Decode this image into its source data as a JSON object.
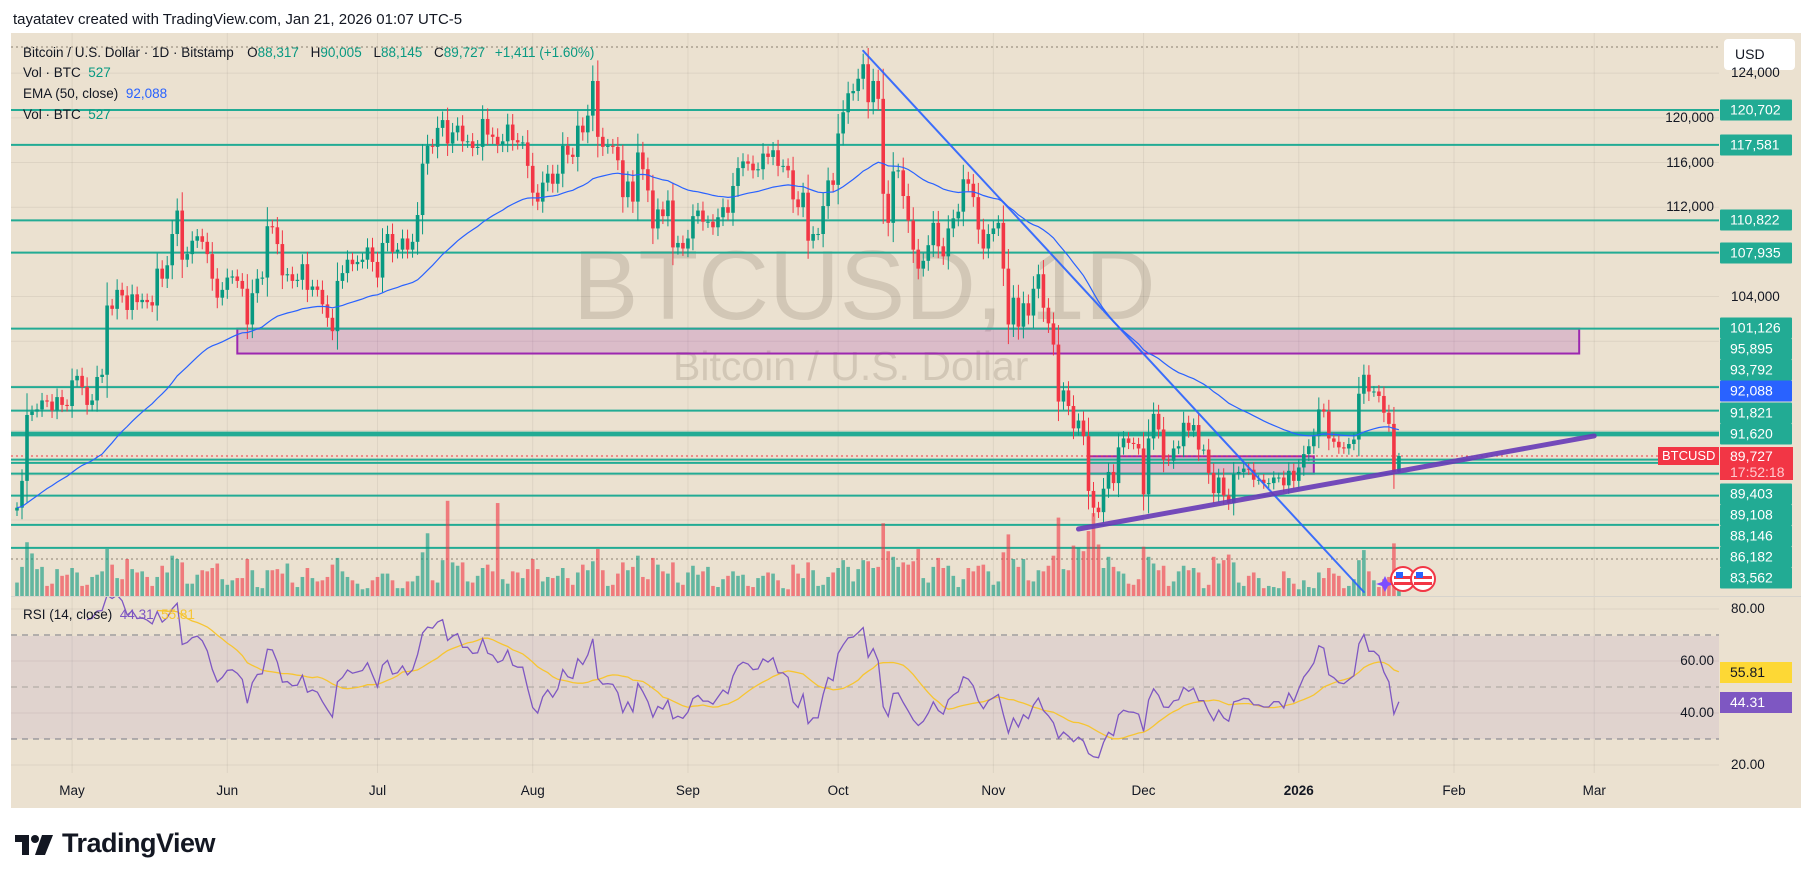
{
  "header": {
    "attribution": "tayatatev created with TradingView.com, Jan 21, 2026 01:07 UTC-5"
  },
  "legend": {
    "symbol": "Bitcoin / U.S. Dollar · 1D · Bitstamp",
    "o_label": "O",
    "open": "88,317",
    "h_label": "H",
    "high": "90,005",
    "l_label": "L",
    "low": "88,145",
    "c_label": "C",
    "close": "89,727",
    "change": "+1,411 (+1.60%)",
    "vol_label": "Vol · BTC",
    "vol_value": "527",
    "ema_label": "EMA (50, close)",
    "ema_value": "92,088",
    "vol2_label": "Vol · BTC",
    "vol2_value": "527"
  },
  "watermark": {
    "symbol": "BTCUSD, 1D",
    "description": "Bitcoin / U.S. Dollar"
  },
  "price_axis": {
    "currency": "USD",
    "ticks": [
      {
        "value": 124000,
        "label": "124,000"
      },
      {
        "value": 120000,
        "label": "120,000"
      },
      {
        "value": 116000,
        "label": "116,000"
      },
      {
        "value": 112000,
        "label": "112,000"
      },
      {
        "value": 104000,
        "label": "104,000"
      }
    ],
    "ema_label": "92,088",
    "last_price": {
      "symbol": "BTCUSD",
      "price": "89,727",
      "countdown": "17:52:18"
    }
  },
  "levels": [
    {
      "price": 120702,
      "label": "120,702"
    },
    {
      "price": 117581,
      "label": "117,581"
    },
    {
      "price": 110822,
      "label": "110,822"
    },
    {
      "price": 107935,
      "label": "107,935"
    },
    {
      "price": 101126,
      "label": "101,126"
    },
    {
      "price": 95895,
      "label": "95,895"
    },
    {
      "price": 93792,
      "label": "93,792"
    },
    {
      "price": 91821,
      "label": "91,821"
    },
    {
      "price": 91620,
      "label": "91,620"
    },
    {
      "price": 89403,
      "label": "89,403"
    },
    {
      "price": 89108,
      "label": "89,108"
    },
    {
      "price": 88146,
      "label": "88,146"
    },
    {
      "price": 86182,
      "label": "86,182"
    },
    {
      "price": 83562,
      "label": "83,562"
    },
    {
      "price": 81500
    }
  ],
  "drawings": {
    "zone": {
      "from": "2025-06-03",
      "to": "2026-02-26",
      "top": 101126,
      "bottom": 98900
    },
    "small_box": {
      "from": "2025-11-20",
      "to": "2026-01-04",
      "top": 89700,
      "bottom": 88146
    },
    "down_trendline": {
      "from": [
        "2025-10-06",
        126000
      ],
      "to": [
        "2026-01-14",
        77550
      ]
    },
    "up_trendline": {
      "from": [
        "2025-11-18",
        83190
      ],
      "to": [
        "2026-03-01",
        91520
      ]
    }
  },
  "rsi": {
    "legend": "RSI (14, close)",
    "value": "44.31",
    "ma_value": "55.81",
    "ticks": [
      {
        "value": 80,
        "label": "80.00"
      },
      {
        "value": 60,
        "label": "60.00"
      },
      {
        "value": 40,
        "label": "40.00"
      },
      {
        "value": 20,
        "label": "20.00"
      }
    ],
    "bands": [
      70,
      50,
      30
    ]
  },
  "time_axis": {
    "labels": [
      {
        "label": "May",
        "date": "2025-05-01"
      },
      {
        "label": "Jun",
        "date": "2025-06-01"
      },
      {
        "label": "Jul",
        "date": "2025-07-01"
      },
      {
        "label": "Aug",
        "date": "2025-08-01"
      },
      {
        "label": "Sep",
        "date": "2025-09-01"
      },
      {
        "label": "Oct",
        "date": "2025-10-01"
      },
      {
        "label": "Nov",
        "date": "2025-11-01"
      },
      {
        "label": "Dec",
        "date": "2025-12-01"
      },
      {
        "label": "2026",
        "date": "2026-01-01",
        "year": true
      },
      {
        "label": "Feb",
        "date": "2026-02-01"
      },
      {
        "label": "Mar",
        "date": "2026-03-01"
      }
    ]
  },
  "events": {
    "icons": [
      "sparkle-icon",
      "us-flag-icon",
      "us-flag-icon"
    ]
  },
  "colors": {
    "up": "#089981",
    "down": "#f23645",
    "level": "#22ab94",
    "ema": "#2962ff",
    "zone": "#9c27b0",
    "up_trendline": "#673ab7",
    "down_trendline": "#2962ff",
    "rsi": "#7e57c2",
    "rsi_ma": "#f7c531",
    "background": "#ebe1d0"
  },
  "footer": {
    "brand": "TradingView"
  },
  "chart_data": {
    "type": "candlestick",
    "symbol": "BTCUSD",
    "interval": "1D",
    "xlim": [
      "2025-04-20",
      "2026-01-21"
    ],
    "ylim": [
      77000,
      127000
    ],
    "last_ohlc": {
      "open": 88317,
      "high": 90005,
      "low": 88145,
      "close": 89727
    },
    "ema_period": 50,
    "rsi_period": 14,
    "closes": [
      85100,
      87500,
      93400,
      93700,
      93900,
      94700,
      94600,
      93800,
      95000,
      94300,
      94200,
      96500,
      96900,
      95900,
      94300,
      94700,
      96800,
      97000,
      103200,
      102900,
      104600,
      104100,
      102800,
      104200,
      103500,
      103700,
      103500,
      103200,
      106500,
      105600,
      106800,
      109600,
      111700,
      107300,
      107800,
      109000,
      109400,
      108900,
      107800,
      105600,
      103900,
      104600,
      105700,
      105800,
      105400,
      104700,
      101500,
      104300,
      105600,
      105700,
      110300,
      110200,
      108700,
      105900,
      106000,
      105400,
      105500,
      106900,
      104600,
      104900,
      104600,
      103300,
      102100,
      100900,
      105400,
      106100,
      107300,
      106900,
      107100,
      107300,
      108400,
      107100,
      105700,
      108800,
      109600,
      108000,
      108200,
      109200,
      108200,
      108900,
      111300,
      115900,
      117500,
      117400,
      119100,
      119800,
      117700,
      118700,
      119300,
      117900,
      117900,
      117300,
      117400,
      119900,
      118500,
      118300,
      117600,
      117900,
      119400,
      118000,
      117800,
      117800,
      115700,
      113300,
      112500,
      114200,
      115000,
      114100,
      115000,
      117500,
      116700,
      116500,
      119300,
      118700,
      120200,
      123300,
      118300,
      117400,
      117500,
      117400,
      116200,
      112900,
      114300,
      112500,
      116900,
      115400,
      113500,
      110100,
      111800,
      111200,
      112600,
      108400,
      108800,
      108300,
      109200,
      111200,
      111700,
      110700,
      110700,
      110200,
      111100,
      112000,
      111500,
      113900,
      115500,
      116100,
      115900,
      115300,
      115400,
      116800,
      116500,
      117100,
      115700,
      115700,
      115300,
      112700,
      112000,
      113300,
      109000,
      109600,
      109600,
      112100,
      114400,
      114000,
      118600,
      120500,
      122200,
      122400,
      123500,
      124800,
      121400,
      123300,
      121700,
      113200,
      110600,
      115200,
      115300,
      113000,
      110800,
      108200,
      106500,
      107200,
      108600,
      110600,
      108500,
      107600,
      110100,
      111000,
      111600,
      114500,
      114100,
      112900,
      110000,
      108300,
      109600,
      110100,
      110600,
      106500,
      101500,
      103900,
      101300,
      103400,
      102300,
      104700,
      106000,
      103000,
      101600,
      99700,
      94600,
      95600,
      94200,
      92200,
      92900,
      91500,
      86600,
      85100,
      84700,
      86800,
      88300,
      87300,
      90500,
      91300,
      90900,
      90800,
      90400,
      86300,
      91300,
      93500,
      92100,
      89400,
      89300,
      90400,
      90600,
      92700,
      92000,
      92500,
      90300,
      90300,
      88200,
      86400,
      87800,
      86200,
      85500,
      88100,
      88300,
      88600,
      88500,
      87600,
      87600,
      87300,
      87300,
      87800,
      87800,
      87100,
      88400,
      87500,
      88700,
      89900,
      90600,
      91500,
      93900,
      93700,
      91300,
      91000,
      90500,
      90400,
      90800,
      91200,
      95300,
      97000,
      95500,
      95500,
      95100,
      93600,
      92600,
      88300,
      89727
    ],
    "volumes": [
      1200,
      2600,
      4800,
      3800,
      2400,
      2600,
      900,
      1100,
      2400,
      1800,
      1900,
      2500,
      2100,
      900,
      1000,
      1700,
      1900,
      2200,
      4200,
      2800,
      1600,
      1500,
      3300,
      2400,
      2100,
      2200,
      1700,
      900,
      1700,
      2700,
      2100,
      3600,
      3300,
      3000,
      1100,
      1100,
      1900,
      2300,
      2200,
      2500,
      2900,
      1500,
      1000,
      1400,
      1600,
      1600,
      3300,
      2300,
      800,
      700,
      2300,
      2300,
      2400,
      2000,
      2900,
      1200,
      800,
      1700,
      2500,
      1600,
      1300,
      1400,
      1700,
      2800,
      3400,
      2200,
      1700,
      1400,
      1100,
      600,
      700,
      1400,
      1700,
      2000,
      2000,
      1400,
      700,
      700,
      1300,
      1300,
      1800,
      3900,
      5600,
      1400,
      1200,
      3200,
      8500,
      3000,
      2700,
      3000,
      1300,
      1200,
      1800,
      2500,
      2800,
      2200,
      8300,
      1500,
      1100,
      2200,
      2100,
      1600,
      2400,
      3300,
      2400,
      1300,
      1700,
      1600,
      1800,
      2500,
      1600,
      1000,
      2100,
      2800,
      2300,
      3100,
      4200,
      2300,
      900,
      1000,
      2000,
      3000,
      2300,
      2600,
      3600,
      1700,
      1500,
      3400,
      2800,
      2200,
      2000,
      3000,
      1200,
      1000,
      2100,
      2700,
      1900,
      2200,
      2600,
      900,
      800,
      1500,
      1800,
      2200,
      1800,
      1900,
      900,
      800,
      1600,
      1800,
      2100,
      2000,
      1400,
      700,
      600,
      2800,
      2000,
      1600,
      3000,
      2300,
      900,
      1000,
      1700,
      2100,
      2500,
      3200,
      2600,
      1300,
      2400,
      3200,
      3100,
      2500,
      2600,
      6500,
      4000,
      3500,
      2600,
      3000,
      2800,
      3100,
      4200,
      1600,
      1200,
      2600,
      3400,
      2500,
      2700,
      1800,
      800,
      1500,
      2500,
      2200,
      2700,
      2800,
      2200,
      1000,
      1300,
      3900,
      5500,
      3300,
      2600,
      3300,
      1400,
      1300,
      2300,
      2200,
      2700,
      3600,
      7000,
      2400,
      2300,
      4500,
      4300,
      4000,
      5800,
      7400,
      4600,
      2500,
      3500,
      2600,
      2200,
      2000,
      1100,
      1000,
      1500,
      4400,
      3500,
      2900,
      2300,
      2700,
      900,
      1300,
      2200,
      2700,
      2300,
      2500,
      2100,
      700,
      1000,
      3500,
      2900,
      3200,
      3700,
      3000,
      1200,
      900,
      1800,
      2100,
      1600,
      700,
      900,
      800,
      700,
      2200,
      1600,
      1100,
      600,
      1400,
      800,
      700,
      2100,
      1600,
      2500,
      2000,
      1800,
      700,
      900,
      1500,
      3200,
      4100,
      2200,
      1400,
      800,
      1500,
      1700,
      4700,
      527
    ]
  }
}
